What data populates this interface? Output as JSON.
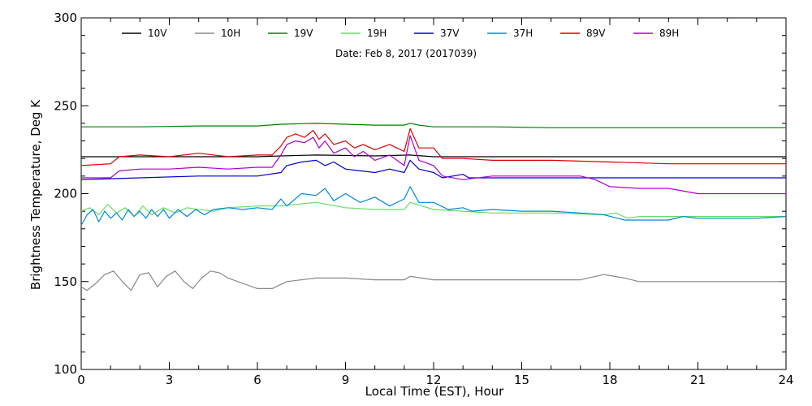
{
  "chart_data": {
    "type": "line",
    "date_text": "Date: Feb  8, 2017 (2017039)",
    "xlabel": "Local Time (EST), Hour",
    "ylabel": "Brightness Temperature, Deg K",
    "xlim": [
      0,
      24
    ],
    "ylim": [
      100,
      300
    ],
    "xticks": [
      0,
      3,
      6,
      9,
      12,
      15,
      18,
      21,
      24
    ],
    "xtick_labels": [
      "0",
      "3",
      "6",
      "9",
      "12",
      "15",
      "18",
      "21",
      "24"
    ],
    "yticks": [
      100,
      150,
      200,
      250,
      300
    ],
    "ytick_labels": [
      "100",
      "150",
      "200",
      "250",
      "300"
    ],
    "grid": false,
    "legend_position": "top",
    "series": [
      {
        "name": "10V",
        "color": "#000000",
        "x": [
          0,
          2,
          4,
          6,
          6.8,
          8,
          10,
          11.2,
          12,
          14,
          16,
          18,
          20,
          22,
          24
        ],
        "y": [
          221,
          221,
          221,
          221,
          221.5,
          222,
          221.5,
          222,
          221,
          221,
          221,
          221,
          221,
          221,
          221
        ]
      },
      {
        "name": "10H",
        "color": "#888888",
        "x": [
          0,
          0.2,
          0.5,
          0.8,
          1.1,
          1.4,
          1.7,
          2.0,
          2.3,
          2.6,
          2.9,
          3.2,
          3.5,
          3.8,
          4.1,
          4.4,
          4.7,
          5.0,
          5.5,
          6.0,
          6.5,
          7.0,
          8.0,
          9.0,
          10.0,
          11.0,
          11.2,
          12.0,
          13.0,
          14.0,
          15.0,
          16.0,
          17.0,
          17.8,
          18.5,
          19.0,
          20.0,
          21.0,
          22.0,
          23.0,
          24.0
        ],
        "y": [
          147,
          145,
          149,
          154,
          156,
          150,
          145,
          154,
          155,
          147,
          153,
          156,
          150,
          146,
          152,
          156,
          155,
          152,
          149,
          146,
          146,
          150,
          152,
          152,
          151,
          151,
          153,
          151,
          151,
          151,
          151,
          151,
          151,
          154,
          152,
          150,
          150,
          150,
          150,
          150,
          150
        ]
      },
      {
        "name": "19V",
        "color": "#008000",
        "x": [
          0,
          2,
          4,
          6,
          6.8,
          8,
          9,
          10,
          11,
          11.2,
          11.5,
          12,
          14,
          16,
          18,
          20,
          22,
          24
        ],
        "y": [
          238,
          238,
          238.5,
          238.5,
          239.5,
          240,
          239.5,
          239,
          239,
          240,
          239,
          238,
          238,
          237.5,
          237.5,
          237.5,
          237.5,
          237.5
        ]
      },
      {
        "name": "19H",
        "color": "#66dd66",
        "x": [
          0,
          0.3,
          0.6,
          0.9,
          1.2,
          1.5,
          1.8,
          2.1,
          2.4,
          2.8,
          3.2,
          3.6,
          4.0,
          4.5,
          5.0,
          6.0,
          6.8,
          8.0,
          9.0,
          10.0,
          11.0,
          11.2,
          12.0,
          13.0,
          14.0,
          15.0,
          16.0,
          17.0,
          17.8,
          18.2,
          18.6,
          19.0,
          20.0,
          21.0,
          22.0,
          23.0,
          24.0
        ],
        "y": [
          190,
          192,
          188,
          194,
          189,
          192,
          187,
          193,
          188,
          192,
          189,
          192,
          191,
          190,
          192,
          193,
          193,
          195,
          192,
          191,
          191,
          195,
          191,
          190,
          189,
          189,
          189,
          188.5,
          188,
          189,
          186,
          187,
          187,
          187,
          187,
          187,
          187
        ]
      },
      {
        "name": "37V",
        "color": "#0000cc",
        "x": [
          0,
          2,
          4,
          6,
          6.8,
          7.0,
          7.5,
          8.0,
          8.3,
          8.6,
          9.0,
          9.5,
          10.0,
          10.5,
          11.0,
          11.2,
          11.5,
          12.0,
          12.3,
          13.0,
          13.2,
          14.0,
          16.0,
          18.0,
          20.0,
          22.0,
          24.0
        ],
        "y": [
          208,
          209,
          210,
          210,
          212,
          216,
          218,
          219,
          216,
          218,
          214,
          213,
          212,
          214,
          212,
          219,
          214,
          212,
          209,
          211,
          209,
          209,
          209,
          209,
          209,
          209,
          209
        ]
      },
      {
        "name": "37H",
        "color": "#0088dd",
        "x": [
          0,
          0.2,
          0.4,
          0.6,
          0.8,
          1.0,
          1.2,
          1.4,
          1.6,
          1.8,
          2.0,
          2.2,
          2.4,
          2.6,
          2.8,
          3.0,
          3.3,
          3.6,
          3.9,
          4.2,
          4.5,
          5.0,
          5.5,
          6.0,
          6.5,
          6.8,
          7.0,
          7.5,
          8.0,
          8.3,
          8.6,
          9.0,
          9.5,
          10.0,
          10.5,
          11.0,
          11.2,
          11.5,
          12.0,
          12.5,
          13.0,
          13.3,
          14.0,
          15.0,
          16.0,
          17.0,
          17.8,
          18.5,
          19.0,
          20.0,
          20.5,
          21.0,
          22.0,
          23.0,
          24.0
        ],
        "y": [
          182,
          188,
          191,
          184,
          190,
          186,
          189,
          185,
          191,
          187,
          190,
          186,
          191,
          187,
          191,
          186,
          191,
          187,
          191,
          188,
          191,
          192,
          191,
          192,
          191,
          197,
          193,
          200,
          199,
          203,
          196,
          200,
          195,
          198,
          193,
          197,
          204,
          195,
          195,
          191,
          192,
          190,
          191,
          190,
          190,
          189,
          188,
          185,
          185,
          185,
          187,
          186,
          186,
          186,
          187
        ]
      },
      {
        "name": "89V",
        "color": "#dd0000",
        "x": [
          0,
          1.0,
          1.3,
          2.0,
          3.0,
          4.0,
          5.0,
          6.0,
          6.5,
          6.8,
          7.0,
          7.3,
          7.6,
          7.9,
          8.1,
          8.3,
          8.6,
          9.0,
          9.3,
          9.6,
          10.0,
          10.5,
          11.0,
          11.2,
          11.5,
          12.0,
          12.3,
          13.0,
          14.0,
          16.0,
          18.0,
          20.0,
          22.0,
          24.0
        ],
        "y": [
          216,
          217,
          221,
          222,
          221,
          223,
          221,
          222,
          222,
          227,
          232,
          234,
          232,
          236,
          231,
          234,
          228,
          230,
          226,
          228,
          225,
          228,
          224,
          237,
          226,
          226,
          220,
          220,
          219,
          219,
          218,
          217,
          217,
          217
        ]
      },
      {
        "name": "89H",
        "color": "#aa00cc",
        "x": [
          0,
          1.0,
          1.3,
          2.0,
          3.0,
          4.0,
          5.0,
          6.0,
          6.5,
          6.8,
          7.0,
          7.3,
          7.6,
          7.9,
          8.1,
          8.3,
          8.6,
          9.0,
          9.3,
          9.6,
          10.0,
          10.5,
          11.0,
          11.2,
          11.5,
          12.0,
          12.3,
          13.0,
          14.0,
          16.0,
          17.0,
          17.5,
          18.0,
          19.0,
          20.0,
          21.0,
          22.0,
          24.0
        ],
        "y": [
          209,
          209,
          213,
          214,
          214,
          215,
          214,
          215,
          215,
          222,
          228,
          230,
          229,
          232,
          226,
          230,
          223,
          226,
          221,
          224,
          219,
          222,
          216,
          233,
          219,
          216,
          210,
          208,
          210,
          210,
          210,
          208,
          204,
          203,
          203,
          200,
          200,
          200
        ]
      }
    ]
  }
}
